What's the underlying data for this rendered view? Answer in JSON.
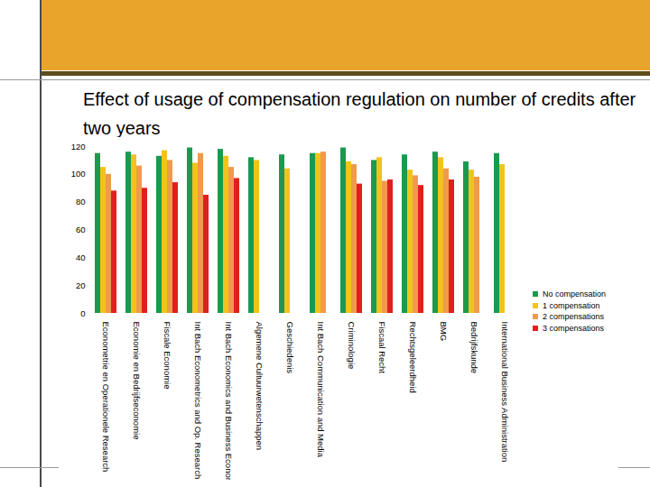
{
  "chart_data": {
    "type": "bar",
    "title": "Effect of usage of compensation regulation on number of credits after two years",
    "categories": [
      "Econometrie en Operationele Research",
      "Economie en Bedrijfseconomie",
      "Fiscale Economie",
      "Int Bach Econometrics and Op. Research",
      "Int Bach Economics and Business Economics",
      "Algemene Cultuurwetenschappen",
      "Geschiedenis",
      "Int Bach Communication and Media",
      "Criminologie",
      "Fiscaal Recht",
      "Rechtsgeleerdheid",
      "BMG",
      "Bedrijfskunde",
      "International Business Administration"
    ],
    "series": [
      {
        "name": "No compensation",
        "color": "#1b9a4f",
        "values": [
          115,
          116,
          113,
          119,
          118,
          112,
          114,
          115,
          119,
          110,
          114,
          116,
          109,
          115
        ]
      },
      {
        "name": "1 compensation",
        "color": "#f2c31b",
        "values": [
          105,
          114,
          117,
          108,
          113,
          110,
          104,
          115,
          109,
          112,
          103,
          112,
          103,
          107
        ]
      },
      {
        "name": "2 compensations",
        "color": "#ef9a4c",
        "values": [
          100,
          106,
          110,
          115,
          105,
          null,
          null,
          116,
          107,
          95,
          99,
          104,
          98,
          null
        ]
      },
      {
        "name": "3 compensations",
        "color": "#e0201e",
        "values": [
          88,
          90,
          94,
          85,
          97,
          null,
          null,
          null,
          93,
          96,
          92,
          96,
          null,
          null
        ]
      }
    ],
    "ylim": [
      0,
      120
    ],
    "yticks": [
      0,
      20,
      40,
      60,
      80,
      100,
      120
    ],
    "grid": false,
    "legend": "right"
  }
}
